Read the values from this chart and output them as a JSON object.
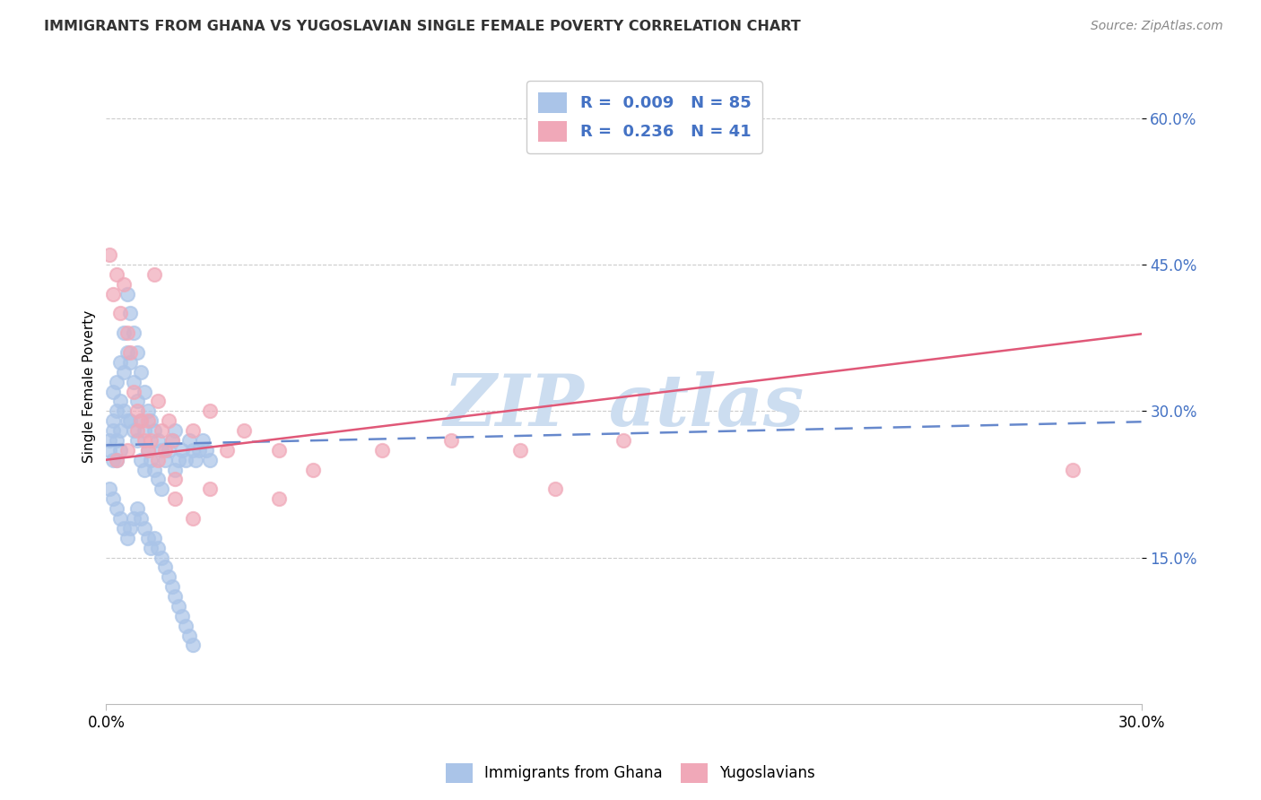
{
  "title": "IMMIGRANTS FROM GHANA VS YUGOSLAVIAN SINGLE FEMALE POVERTY CORRELATION CHART",
  "source": "Source: ZipAtlas.com",
  "ylabel": "Single Female Poverty",
  "legend_label1": "Immigrants from Ghana",
  "legend_label2": "Yugoslavians",
  "R1": "0.009",
  "N1": "85",
  "R2": "0.236",
  "N2": "41",
  "color_ghana": "#aac4e8",
  "color_yugo": "#f0a8b8",
  "color_line_ghana": "#6688cc",
  "color_line_yugo": "#e05878",
  "watermark_color": "#ccddf0",
  "xlim": [
    0.0,
    0.3
  ],
  "ylim": [
    0.0,
    0.65
  ],
  "ytick_values": [
    0.15,
    0.3,
    0.45,
    0.6
  ],
  "ghana_x": [
    0.001,
    0.001,
    0.002,
    0.002,
    0.002,
    0.002,
    0.003,
    0.003,
    0.003,
    0.003,
    0.004,
    0.004,
    0.004,
    0.004,
    0.005,
    0.005,
    0.005,
    0.006,
    0.006,
    0.006,
    0.007,
    0.007,
    0.007,
    0.008,
    0.008,
    0.008,
    0.009,
    0.009,
    0.009,
    0.01,
    0.01,
    0.01,
    0.011,
    0.011,
    0.011,
    0.012,
    0.012,
    0.013,
    0.013,
    0.014,
    0.014,
    0.015,
    0.015,
    0.016,
    0.016,
    0.017,
    0.018,
    0.019,
    0.02,
    0.02,
    0.021,
    0.022,
    0.023,
    0.024,
    0.025,
    0.026,
    0.027,
    0.028,
    0.029,
    0.03,
    0.001,
    0.002,
    0.003,
    0.004,
    0.005,
    0.006,
    0.007,
    0.008,
    0.009,
    0.01,
    0.011,
    0.012,
    0.013,
    0.014,
    0.015,
    0.016,
    0.017,
    0.018,
    0.019,
    0.02,
    0.021,
    0.022,
    0.023,
    0.024,
    0.025
  ],
  "ghana_y": [
    0.27,
    0.26,
    0.25,
    0.29,
    0.32,
    0.28,
    0.3,
    0.27,
    0.25,
    0.33,
    0.35,
    0.31,
    0.28,
    0.26,
    0.38,
    0.34,
    0.3,
    0.42,
    0.36,
    0.29,
    0.4,
    0.35,
    0.29,
    0.38,
    0.33,
    0.28,
    0.36,
    0.31,
    0.27,
    0.34,
    0.29,
    0.25,
    0.32,
    0.28,
    0.24,
    0.3,
    0.26,
    0.29,
    0.25,
    0.28,
    0.24,
    0.27,
    0.23,
    0.26,
    0.22,
    0.25,
    0.26,
    0.27,
    0.28,
    0.24,
    0.25,
    0.26,
    0.25,
    0.27,
    0.26,
    0.25,
    0.26,
    0.27,
    0.26,
    0.25,
    0.22,
    0.21,
    0.2,
    0.19,
    0.18,
    0.17,
    0.18,
    0.19,
    0.2,
    0.19,
    0.18,
    0.17,
    0.16,
    0.17,
    0.16,
    0.15,
    0.14,
    0.13,
    0.12,
    0.11,
    0.1,
    0.09,
    0.08,
    0.07,
    0.06
  ],
  "yugo_x": [
    0.001,
    0.002,
    0.003,
    0.004,
    0.005,
    0.006,
    0.007,
    0.008,
    0.009,
    0.01,
    0.011,
    0.012,
    0.013,
    0.014,
    0.015,
    0.016,
    0.017,
    0.018,
    0.019,
    0.02,
    0.025,
    0.03,
    0.035,
    0.04,
    0.05,
    0.06,
    0.08,
    0.1,
    0.12,
    0.15,
    0.003,
    0.006,
    0.009,
    0.012,
    0.015,
    0.02,
    0.025,
    0.03,
    0.05,
    0.13,
    0.28
  ],
  "yugo_y": [
    0.46,
    0.42,
    0.44,
    0.4,
    0.43,
    0.38,
    0.36,
    0.32,
    0.3,
    0.29,
    0.27,
    0.29,
    0.27,
    0.44,
    0.31,
    0.28,
    0.26,
    0.29,
    0.27,
    0.23,
    0.28,
    0.3,
    0.26,
    0.28,
    0.26,
    0.24,
    0.26,
    0.27,
    0.26,
    0.27,
    0.25,
    0.26,
    0.28,
    0.26,
    0.25,
    0.21,
    0.19,
    0.22,
    0.21,
    0.22,
    0.24
  ]
}
